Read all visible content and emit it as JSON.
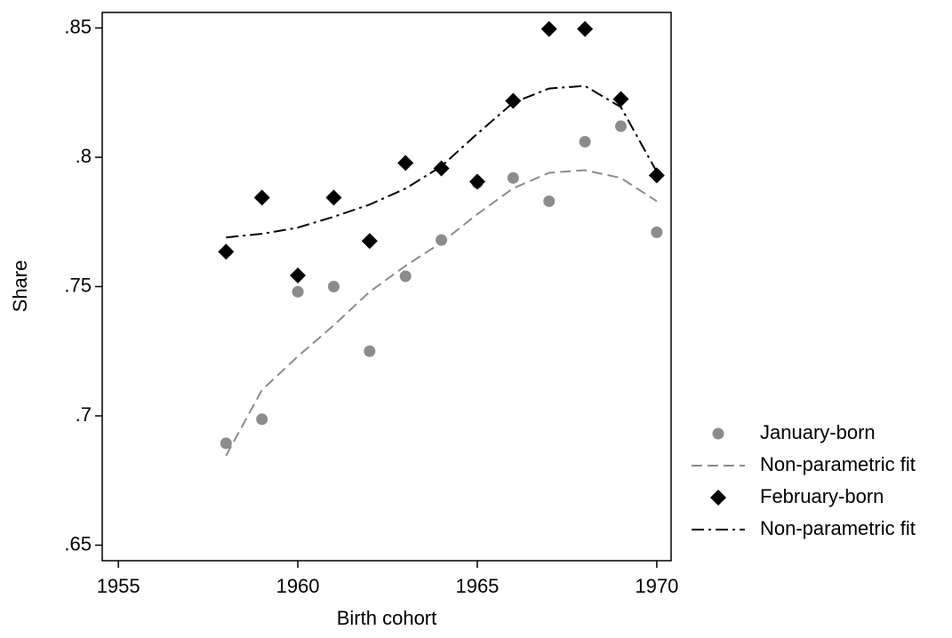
{
  "chart_data": {
    "type": "scatter",
    "x_label": "Birth cohort",
    "y_label": "Share",
    "x": [
      1958,
      1959,
      1960,
      1961,
      1962,
      1963,
      1964,
      1965,
      1966,
      1967,
      1968,
      1969,
      1970
    ],
    "series": [
      {
        "name": "January-born",
        "kind": "points",
        "marker": "circle",
        "color": "#8c8c8c",
        "values": [
          0.6894,
          0.6987,
          0.748,
          0.75,
          0.725,
          0.754,
          0.768,
          0.79,
          0.792,
          0.783,
          0.806,
          0.812,
          0.771
        ]
      },
      {
        "name": "Non-parametric fit",
        "kind": "line",
        "dash": "12,6",
        "color": "#8c8c8c",
        "values": [
          0.6846,
          0.71,
          0.723,
          0.735,
          0.748,
          0.758,
          0.767,
          0.778,
          0.788,
          0.794,
          0.795,
          0.792,
          0.783
        ]
      },
      {
        "name": "February-born",
        "kind": "points",
        "marker": "diamond",
        "color": "#000000",
        "values": [
          0.7635,
          0.7844,
          0.7543,
          0.7844,
          0.7676,
          0.7978,
          0.7957,
          0.7906,
          0.8218,
          0.8496,
          0.8496,
          0.8225,
          0.793
        ]
      },
      {
        "name": "Non-parametric fit",
        "kind": "line",
        "dash": "14,5,3,5",
        "color": "#000000",
        "values": [
          0.769,
          0.7704,
          0.7728,
          0.777,
          0.7817,
          0.7879,
          0.7965,
          0.8091,
          0.8211,
          0.8266,
          0.8276,
          0.8194,
          0.7944
        ]
      }
    ],
    "xlim": [
      1954.55,
      1970.4
    ],
    "xticks": [
      1955,
      1960,
      1965,
      1970
    ],
    "ylim": [
      0.644,
      0.856
    ],
    "yticks": [
      {
        "value": 0.65,
        "label": ".65"
      },
      {
        "value": 0.7,
        "label": ".7"
      },
      {
        "value": 0.75,
        "label": ".75"
      },
      {
        "value": 0.8,
        "label": ".8"
      },
      {
        "value": 0.85,
        "label": ".85"
      }
    ],
    "grid": false,
    "legend": "right"
  }
}
